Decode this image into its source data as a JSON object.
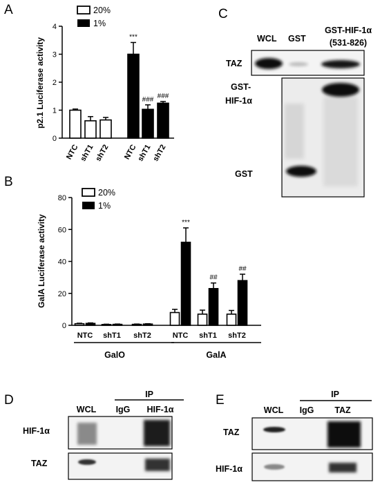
{
  "panels": {
    "A": {
      "letter": "A",
      "ylabel": "p2.1 Luciferase activity",
      "yticks": [
        "0",
        "1",
        "2",
        "3",
        "4"
      ],
      "legend": [
        "20%",
        "1%"
      ],
      "categories": [
        "NTC",
        "shT1",
        "shT2",
        "NTC",
        "shT1",
        "shT2"
      ]
    },
    "B": {
      "letter": "B",
      "ylabel": "GalA Luciferase activity",
      "yticks": [
        "0",
        "20",
        "40",
        "60",
        "80"
      ],
      "legend": [
        "20%",
        "1%"
      ],
      "categories": [
        "NTC",
        "shT1",
        "shT2",
        "NTC",
        "shT1",
        "shT2"
      ],
      "groups": [
        "GalO",
        "GalA"
      ]
    },
    "C": {
      "letter": "C",
      "lanes": [
        "WCL",
        "GST",
        "GST-HIF-1α",
        "(531-826)"
      ],
      "bands": [
        "TAZ",
        "GST-",
        "HIF-1α",
        "GST"
      ]
    },
    "D": {
      "letter": "D",
      "ip": "IP",
      "lanes": [
        "WCL",
        "IgG",
        "HIF-1α"
      ],
      "bands": [
        "HIF-1α",
        "TAZ"
      ]
    },
    "E": {
      "letter": "E",
      "ip": "IP",
      "lanes": [
        "WCL",
        "IgG",
        "TAZ"
      ],
      "bands": [
        "TAZ",
        "HIF-1α"
      ]
    }
  },
  "chart_data": [
    {
      "type": "bar",
      "ylabel": "p2.1 Luciferase activity",
      "ylim": [
        0,
        4
      ],
      "categories": [
        "NTC",
        "shT1",
        "shT2",
        "NTC",
        "shT1",
        "shT2"
      ],
      "series": [
        {
          "name": "20%",
          "values": [
            1.0,
            0.62,
            0.65,
            null,
            null,
            null
          ],
          "errors": [
            0.04,
            0.15,
            0.09,
            null,
            null,
            null
          ],
          "color": "#ffffff"
        },
        {
          "name": "1%",
          "values": [
            null,
            null,
            null,
            3.0,
            1.03,
            1.25
          ],
          "errors": [
            null,
            null,
            null,
            0.42,
            0.16,
            0.06
          ],
          "color": "#000000"
        }
      ],
      "annotations": [
        "",
        "",
        "",
        "***",
        "###",
        "###"
      ]
    },
    {
      "type": "bar",
      "ylabel": "GalA Luciferase activity",
      "ylim": [
        0,
        80
      ],
      "categories": [
        "NTC",
        "shT1",
        "shT2",
        "NTC",
        "shT1",
        "shT2"
      ],
      "groups": [
        "GalO",
        "GalA"
      ],
      "series": [
        {
          "name": "20%",
          "values": [
            1.0,
            0.5,
            0.6,
            8.0,
            7.0,
            7.0
          ],
          "errors": [
            0.3,
            0.2,
            0.2,
            2.0,
            2.5,
            2.3
          ],
          "color": "#ffffff"
        },
        {
          "name": "1%",
          "values": [
            1.2,
            0.6,
            0.8,
            52.0,
            23.0,
            28.0
          ],
          "errors": [
            0.3,
            0.2,
            0.2,
            9.0,
            3.5,
            4.0
          ],
          "color": "#000000"
        }
      ],
      "annotations": [
        "",
        "",
        "",
        "***",
        "##",
        "##"
      ]
    }
  ]
}
